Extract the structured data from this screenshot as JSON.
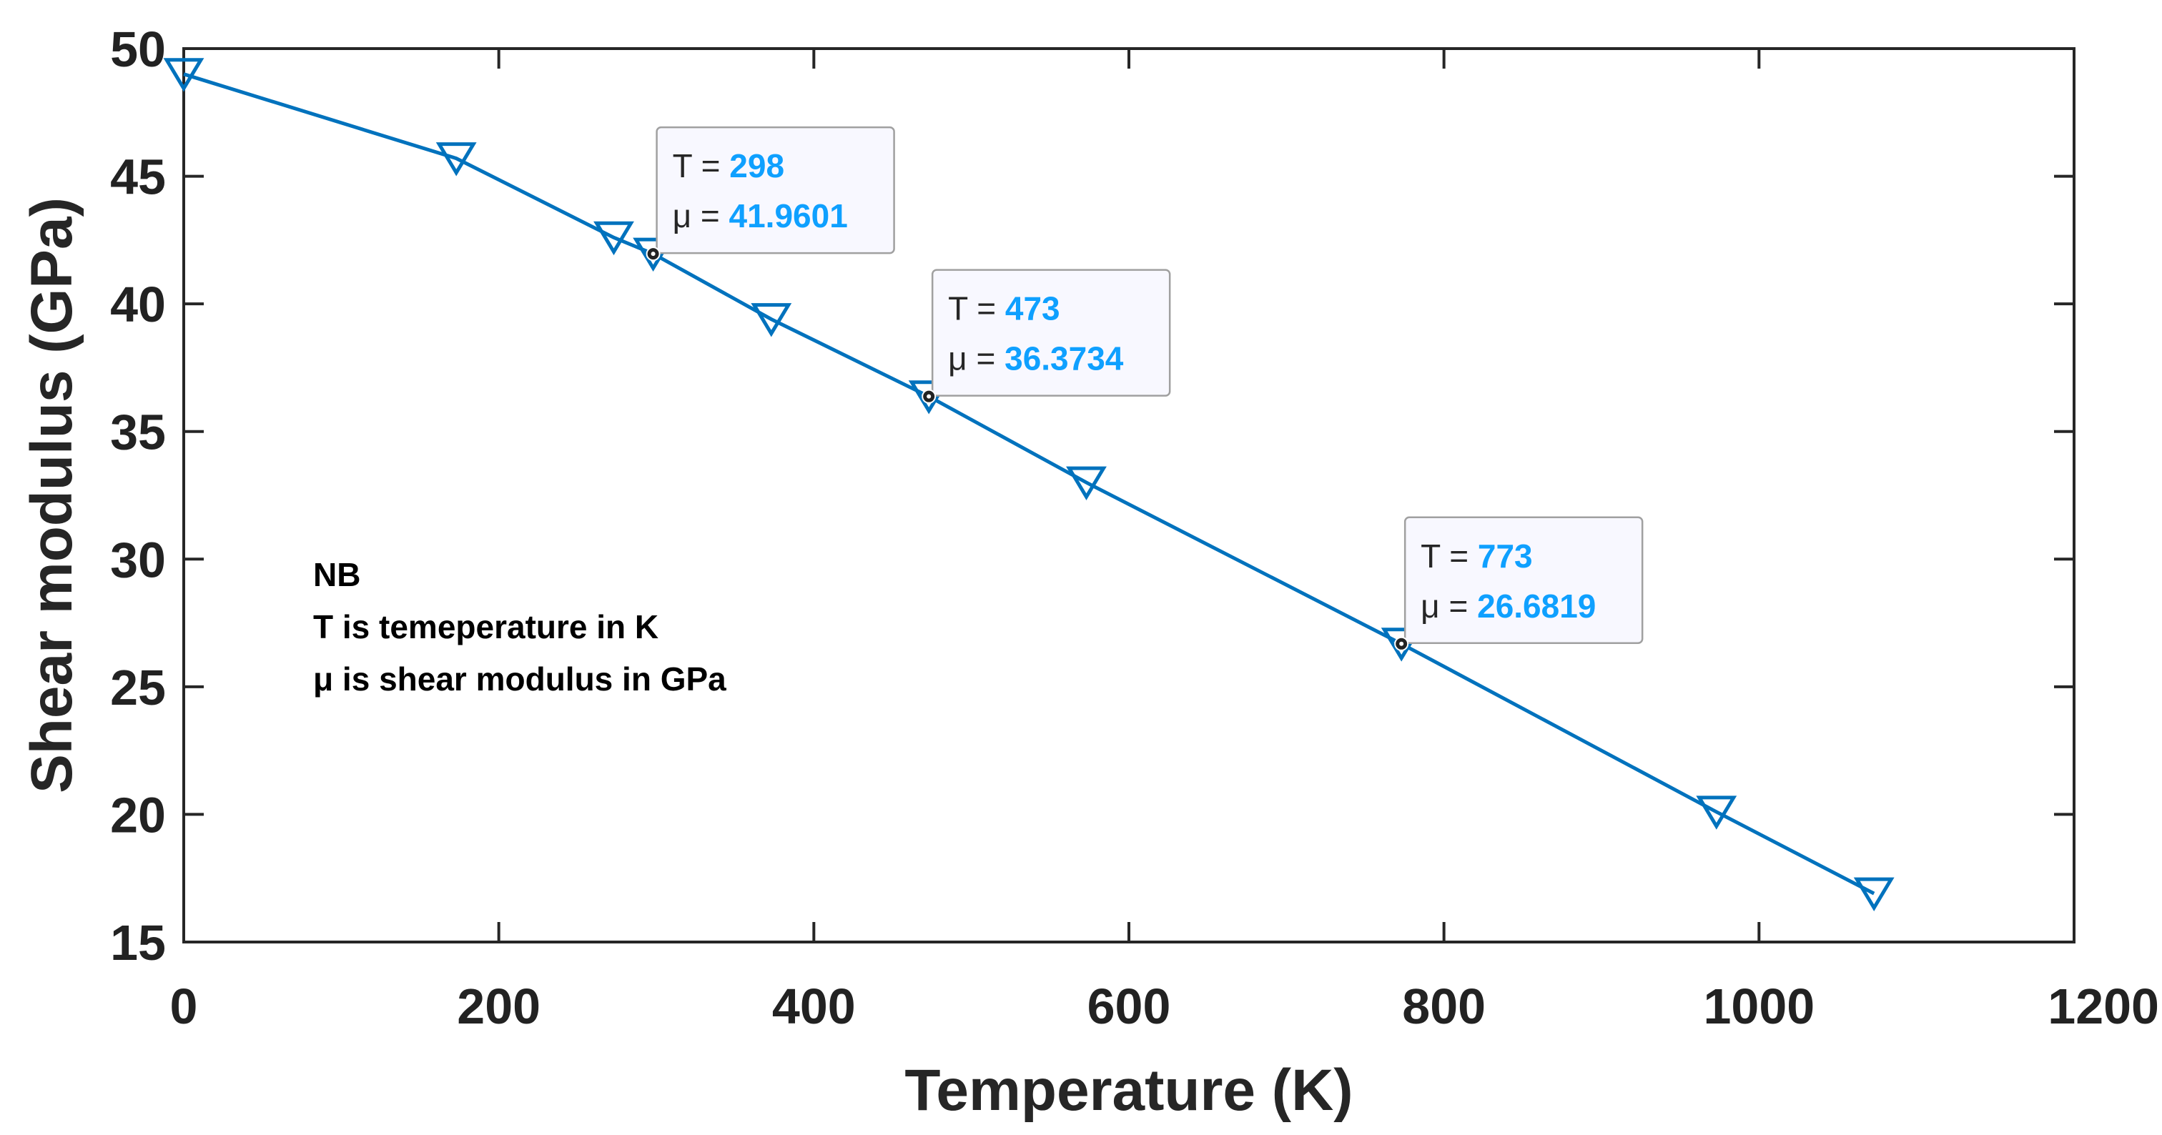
{
  "chart_data": {
    "type": "line",
    "title": "",
    "xlabel": "Temperature (K)",
    "ylabel": "Shear modulus (GPa)",
    "xlim": [
      0,
      1200
    ],
    "ylim": [
      15,
      50
    ],
    "xticks": [
      0,
      200,
      400,
      600,
      800,
      1000,
      1200
    ],
    "yticks": [
      15,
      20,
      25,
      30,
      35,
      40,
      45,
      50
    ],
    "grid": false,
    "series": [
      {
        "name": "Shear modulus",
        "color": "#0072BD",
        "marker": "triangle-down",
        "x": [
          0,
          173,
          273,
          298,
          373,
          473,
          573,
          773,
          973,
          1073
        ],
        "y": [
          49.0,
          45.7,
          42.6,
          41.9601,
          39.4,
          36.3734,
          33.0,
          26.6819,
          20.1,
          16.9
        ]
      }
    ],
    "datatips": [
      {
        "x_key": "T = ",
        "x_value": "298",
        "y_key": "μ = ",
        "y_value": "41.9601",
        "x": 298,
        "y": 41.9601
      },
      {
        "x_key": "T = ",
        "x_value": "473",
        "y_key": "μ = ",
        "y_value": "36.3734",
        "x": 473,
        "y": 36.3734
      },
      {
        "x_key": "T = ",
        "x_value": "773",
        "y_key": "μ = ",
        "y_value": "26.6819",
        "x": 773,
        "y": 26.6819
      }
    ],
    "annotation": {
      "lines": [
        "NB",
        "T is temeperature in K",
        "μ is shear modulus in GPa"
      ]
    },
    "colors": {
      "line": "#0072BD",
      "datatip_value": "#0FA0FF",
      "axis": "#262626"
    }
  }
}
